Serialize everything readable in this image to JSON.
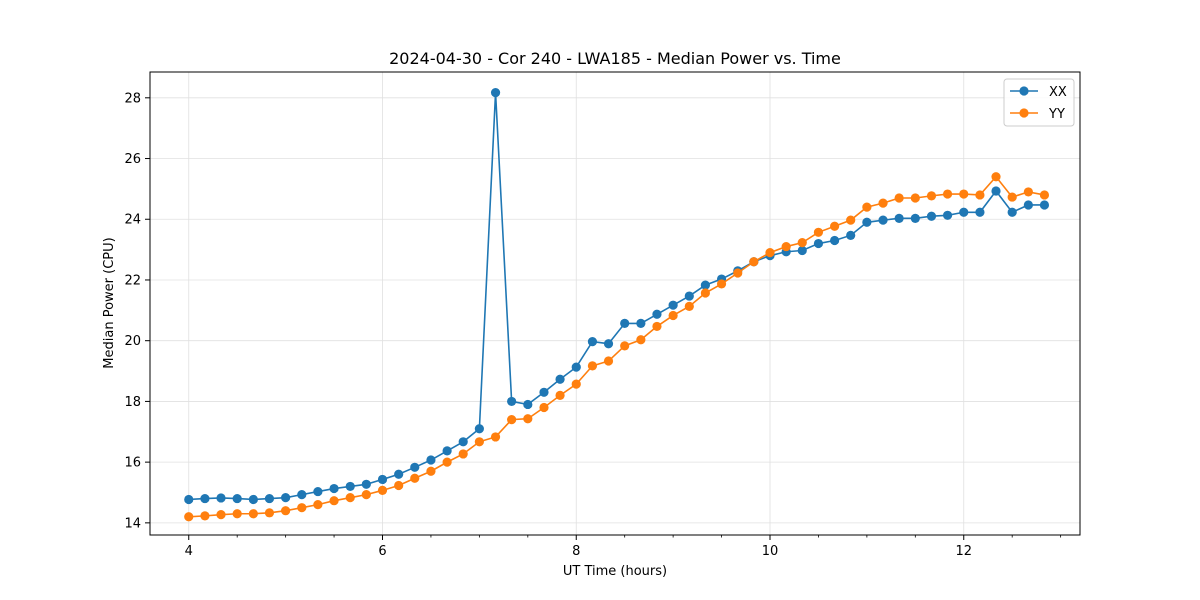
{
  "chart_data": {
    "type": "line",
    "title": "2024-04-30 - Cor 240 - LWA185 - Median Power vs. Time",
    "xlabel": "UT Time (hours)",
    "ylabel": "Median Power (CPU)",
    "xlim": [
      3.6,
      13.2
    ],
    "ylim": [
      13.6,
      28.85
    ],
    "xticks": [
      4,
      6,
      8,
      10,
      12
    ],
    "yticks": [
      14,
      16,
      18,
      20,
      22,
      24,
      26,
      28
    ],
    "xtick_labels": [
      "4",
      "6",
      "8",
      "10",
      "12"
    ],
    "ytick_labels": [
      "14",
      "16",
      "18",
      "20",
      "22",
      "24",
      "26",
      "28"
    ],
    "x_minor_step": 0.5,
    "grid": true,
    "legend_position": "top-right",
    "x": [
      4.0,
      4.167,
      4.333,
      4.5,
      4.667,
      4.833,
      5.0,
      5.167,
      5.333,
      5.5,
      5.667,
      5.833,
      6.0,
      6.167,
      6.333,
      6.5,
      6.667,
      6.833,
      7.0,
      7.167,
      7.333,
      7.5,
      7.667,
      7.833,
      8.0,
      8.167,
      8.333,
      8.5,
      8.667,
      8.833,
      9.0,
      9.167,
      9.333,
      9.5,
      9.667,
      9.833,
      10.0,
      10.167,
      10.333,
      10.5,
      10.667,
      10.833,
      11.0,
      11.167,
      11.333,
      11.5,
      11.667,
      11.833,
      12.0,
      12.167,
      12.333,
      12.5,
      12.667,
      12.833
    ],
    "series": [
      {
        "name": "XX",
        "color": "#1f77b4",
        "values": [
          14.77,
          14.8,
          14.82,
          14.8,
          14.77,
          14.8,
          14.83,
          14.93,
          15.03,
          15.13,
          15.2,
          15.27,
          15.43,
          15.6,
          15.83,
          16.07,
          16.37,
          16.67,
          17.1,
          28.17,
          18.0,
          17.9,
          18.3,
          18.73,
          19.13,
          19.97,
          19.9,
          20.57,
          20.57,
          20.87,
          21.17,
          21.47,
          21.83,
          22.03,
          22.3,
          22.6,
          22.8,
          22.93,
          22.97,
          23.2,
          23.3,
          23.47,
          23.9,
          23.97,
          24.03,
          24.03,
          24.1,
          24.13,
          24.23,
          24.23,
          24.93,
          24.23,
          24.47,
          24.47
        ]
      },
      {
        "name": "YY",
        "color": "#ff7f0e",
        "values": [
          14.2,
          14.23,
          14.27,
          14.3,
          14.3,
          14.33,
          14.4,
          14.5,
          14.6,
          14.73,
          14.83,
          14.93,
          15.07,
          15.23,
          15.47,
          15.7,
          16.0,
          16.27,
          16.67,
          16.83,
          17.4,
          17.43,
          17.8,
          18.2,
          18.57,
          19.17,
          19.33,
          19.83,
          20.03,
          20.47,
          20.83,
          21.13,
          21.57,
          21.87,
          22.23,
          22.6,
          22.9,
          23.1,
          23.23,
          23.57,
          23.77,
          23.97,
          24.4,
          24.53,
          24.7,
          24.7,
          24.77,
          24.83,
          24.83,
          24.8,
          25.4,
          24.73,
          24.9,
          24.8
        ]
      }
    ]
  }
}
